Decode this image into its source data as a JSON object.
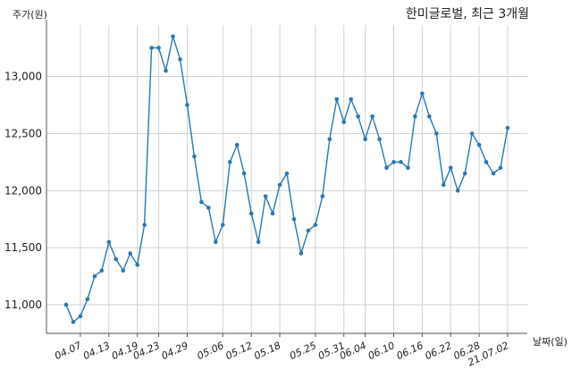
{
  "chart_data": {
    "type": "line",
    "title": "한미글로벌, 최근 3개월",
    "ylabel": "주가(원)",
    "xlabel": "날짜(일)",
    "ylim": [
      10750,
      13450
    ],
    "grid": true,
    "y_ticks": [
      11000,
      11500,
      12000,
      12500,
      13000
    ],
    "y_tick_labels": [
      "11,000",
      "11,500",
      "12,000",
      "12,500",
      "13,000"
    ],
    "x_tick_labels": [
      "04.07",
      "04.13",
      "04.19",
      "04.23",
      "04.29",
      "05.06",
      "05.12",
      "05.18",
      "05.25",
      "05.31",
      "06.04",
      "06.10",
      "06.16",
      "06.22",
      "06.28",
      "21.07.02"
    ],
    "x_tick_positions": [
      2,
      6,
      10,
      13,
      17,
      22,
      26,
      30,
      35,
      39,
      42,
      46,
      50,
      54,
      58,
      62
    ],
    "color": "#2878b5",
    "series": [
      {
        "values": [
          11000,
          10850,
          10900,
          11050,
          11250,
          11300,
          11550,
          11400,
          11300,
          11450,
          11350,
          11700,
          13250,
          13250,
          13050,
          13350,
          13150,
          12750,
          12300,
          11900,
          11850,
          11550,
          11700,
          12250,
          12400,
          12150,
          11800,
          11550,
          11950,
          11800,
          12050,
          12150,
          11750,
          11450,
          11650,
          11700,
          11950,
          12450,
          12800,
          12600,
          12800,
          12650,
          12450,
          12650,
          12450,
          12200,
          12250,
          12250,
          12200,
          12650,
          12850,
          12650,
          12500,
          12050,
          12200,
          12000,
          12150,
          12500,
          12400,
          12250,
          12150,
          12200,
          12550
        ]
      }
    ]
  }
}
